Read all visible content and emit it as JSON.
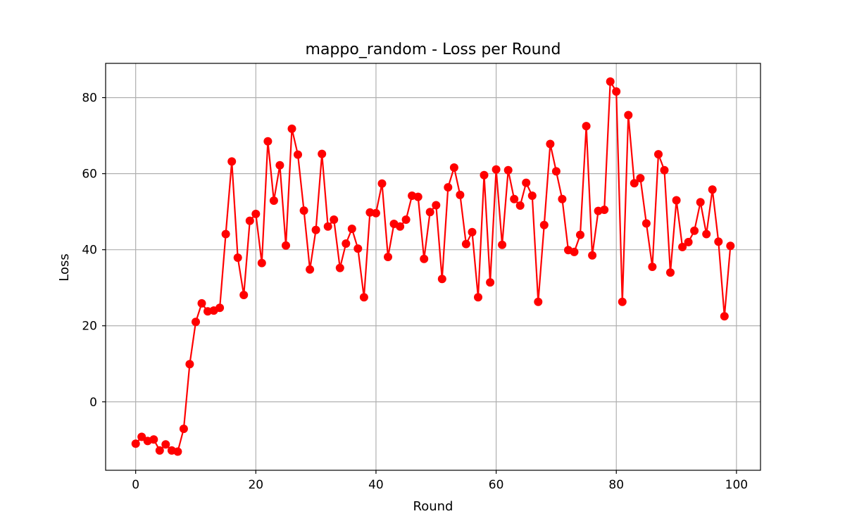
{
  "chart_data": {
    "type": "line",
    "title": "mappo_random - Loss per Round",
    "xlabel": "Round",
    "ylabel": "Loss",
    "xlim": [
      -5,
      104
    ],
    "ylim": [
      -18,
      89
    ],
    "xticks": [
      0,
      20,
      40,
      60,
      80,
      100
    ],
    "yticks": [
      0,
      20,
      40,
      60,
      80
    ],
    "grid": true,
    "series": [
      {
        "color": "#ff0000",
        "marker": "circle",
        "x": [
          0,
          1,
          2,
          3,
          4,
          5,
          6,
          7,
          8,
          9,
          10,
          11,
          12,
          13,
          14,
          15,
          16,
          17,
          18,
          19,
          20,
          21,
          22,
          23,
          24,
          25,
          26,
          27,
          28,
          29,
          30,
          31,
          32,
          33,
          34,
          35,
          36,
          37,
          38,
          39,
          40,
          41,
          42,
          43,
          44,
          45,
          46,
          47,
          48,
          49,
          50,
          51,
          52,
          53,
          54,
          55,
          56,
          57,
          58,
          59,
          60,
          61,
          62,
          63,
          64,
          65,
          66,
          67,
          68,
          69,
          70,
          71,
          72,
          73,
          74,
          75,
          76,
          77,
          78,
          79,
          80,
          81,
          82,
          83,
          84,
          85,
          86,
          87,
          88,
          89,
          90,
          91,
          92,
          93,
          94,
          95,
          96,
          97,
          98,
          99
        ],
        "values": [
          -11.0,
          -9.2,
          -10.3,
          -9.9,
          -12.8,
          -11.2,
          -12.8,
          -13.1,
          -7.1,
          9.9,
          21.0,
          25.9,
          23.8,
          24.0,
          24.7,
          44.1,
          63.2,
          37.9,
          28.1,
          47.6,
          49.4,
          36.5,
          68.5,
          52.9,
          62.2,
          41.1,
          71.8,
          65.0,
          50.3,
          34.8,
          45.2,
          65.2,
          46.1,
          47.9,
          35.2,
          41.6,
          45.5,
          40.3,
          27.5,
          49.8,
          49.6,
          57.4,
          38.1,
          46.8,
          46.1,
          47.9,
          54.2,
          53.9,
          37.6,
          49.9,
          51.7,
          32.3,
          56.4,
          61.6,
          54.4,
          41.5,
          44.6,
          27.5,
          59.6,
          31.4,
          61.1,
          41.3,
          60.9,
          53.3,
          51.6,
          57.6,
          54.2,
          26.3,
          46.5,
          67.8,
          60.6,
          53.3,
          39.9,
          39.4,
          43.9,
          72.5,
          38.5,
          50.2,
          50.5,
          84.2,
          81.6,
          26.3,
          75.4,
          57.5,
          58.8,
          46.9,
          35.5,
          65.1,
          60.9,
          34.0,
          53.0,
          40.7,
          42.0,
          45.0,
          52.5,
          44.1,
          55.8,
          42.1,
          22.5,
          41.0
        ]
      }
    ]
  }
}
